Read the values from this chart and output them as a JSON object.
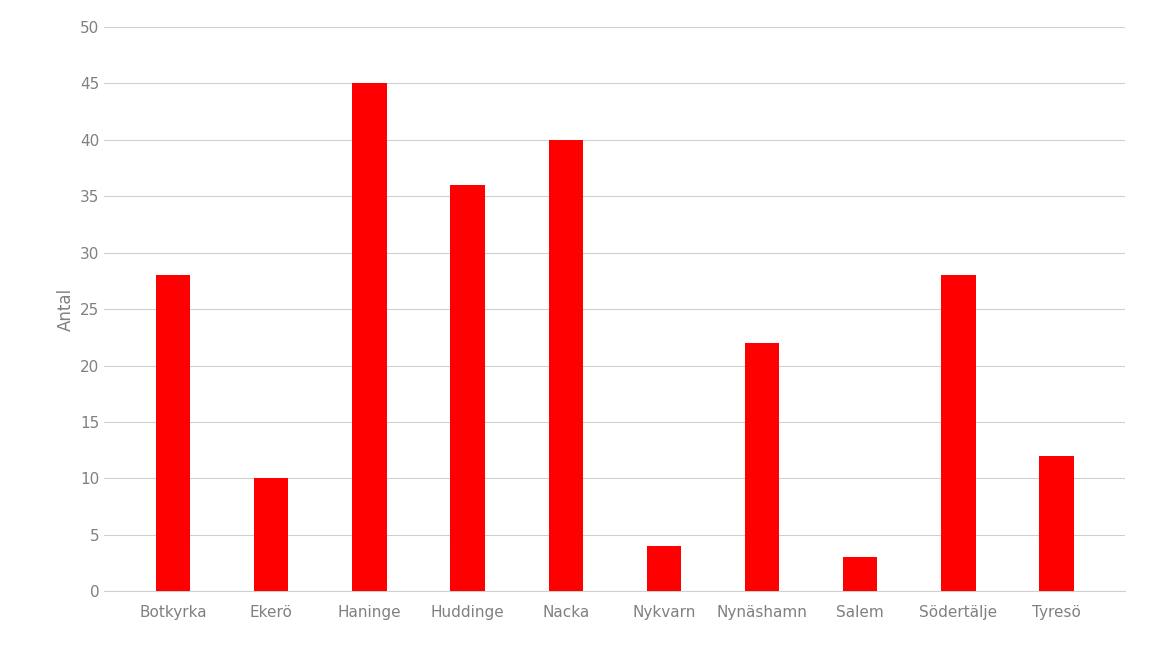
{
  "categories": [
    "Botkyrka",
    "Ekerö",
    "Haninge",
    "Huddinge",
    "Nacka",
    "Nykvarn",
    "Nynäshamn",
    "Salem",
    "Södertälje",
    "Tyresö"
  ],
  "values": [
    28,
    10,
    45,
    36,
    40,
    4,
    22,
    3,
    28,
    12
  ],
  "bar_color": "#ff0000",
  "ylabel": "Antal",
  "ylim": [
    0,
    50
  ],
  "yticks": [
    0,
    5,
    10,
    15,
    20,
    25,
    30,
    35,
    40,
    45,
    50
  ],
  "background_color": "#ffffff",
  "grid_color": "#d0d0d0",
  "tick_label_color": "#808080",
  "tick_label_fontsize": 11,
  "ylabel_fontsize": 12,
  "bar_width": 0.35
}
